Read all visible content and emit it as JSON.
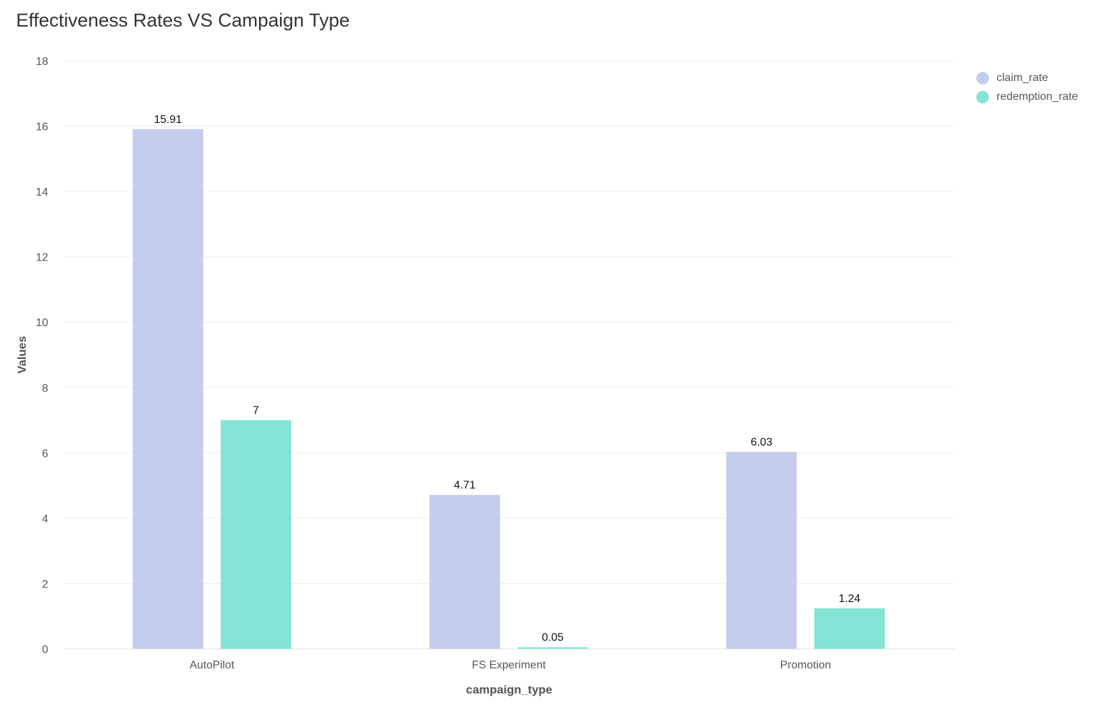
{
  "chart_data": {
    "type": "bar",
    "title": "Effectiveness Rates VS Campaign Type",
    "xlabel": "campaign_type",
    "ylabel": "Values",
    "categories": [
      "AutoPilot",
      "FS Experiment",
      "Promotion"
    ],
    "series": [
      {
        "name": "claim_rate",
        "color": "#c5cdef",
        "values": [
          15.91,
          4.71,
          6.03
        ],
        "labels": [
          "15.91",
          "4.71",
          "6.03"
        ]
      },
      {
        "name": "redemption_rate",
        "color": "#84e4d6",
        "values": [
          7,
          0.05,
          1.24
        ],
        "labels": [
          "7",
          "0.05",
          "1.24"
        ]
      }
    ],
    "ylim": [
      0,
      18
    ],
    "yticks": [
      "0",
      "2",
      "4",
      "6",
      "8",
      "10",
      "12",
      "14",
      "16",
      "18"
    ],
    "grid": true,
    "legend_position": "top-right"
  }
}
